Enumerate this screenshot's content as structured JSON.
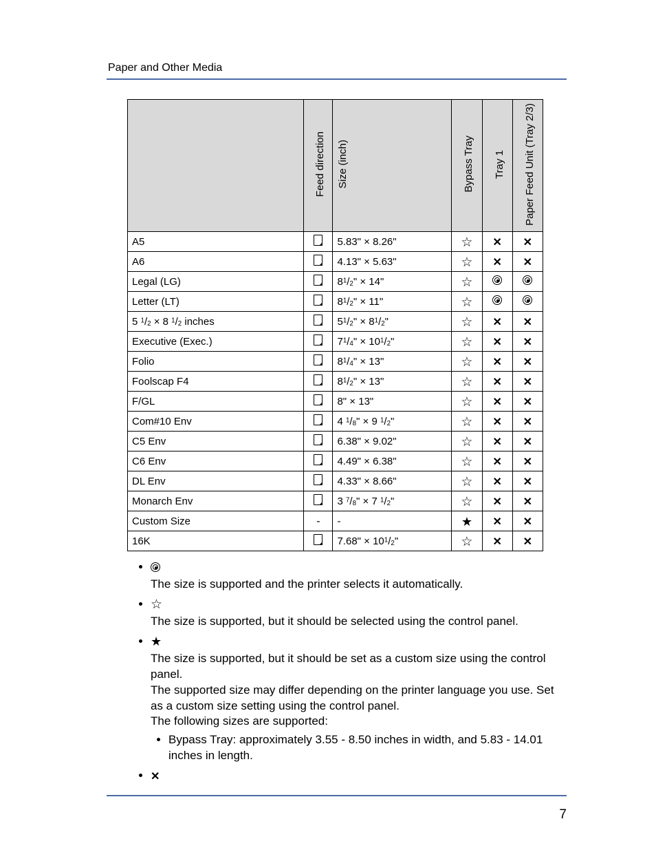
{
  "header": {
    "section_title": "Paper and Other Media"
  },
  "columns": {
    "name": "",
    "feed": "Feed direction",
    "size": "Size (inch)",
    "bypass": "Bypass Tray",
    "tray1": "Tray 1",
    "pfu": "Paper Feed Unit (Tray 2/3)"
  },
  "symbols": {
    "target": "target",
    "star_outline": "☆",
    "star_solid": "★",
    "cross": "✕",
    "dash": "-",
    "feed": "feed"
  },
  "rows": [
    {
      "name": "A5",
      "feed": "feed",
      "size": "5.83\" × 8.26\"",
      "bypass": "star_outline",
      "tray1": "cross",
      "pfu": "cross"
    },
    {
      "name": "A6",
      "feed": "feed",
      "size": "4.13\" × 5.63\"",
      "bypass": "star_outline",
      "tray1": "cross",
      "pfu": "cross"
    },
    {
      "name": "Legal (LG)",
      "feed": "feed",
      "size": "8{1/2}\" × 14\"",
      "bypass": "star_outline",
      "tray1": "target",
      "pfu": "target"
    },
    {
      "name": "Letter (LT)",
      "feed": "feed",
      "size": "8{1/2}\" × 11\"",
      "bypass": "star_outline",
      "tray1": "target",
      "pfu": "target"
    },
    {
      "name": "5 {1/2} × 8 {1/2} inches",
      "feed": "feed",
      "size": "5{1/2}\" × 8{1/2}\"",
      "bypass": "star_outline",
      "tray1": "cross",
      "pfu": "cross"
    },
    {
      "name": "Executive (Exec.)",
      "feed": "feed",
      "size": "7{1/4}\" × 10{1/2}\"",
      "bypass": "star_outline",
      "tray1": "cross",
      "pfu": "cross"
    },
    {
      "name": "Folio",
      "feed": "feed",
      "size": "8{1/4}\" × 13\"",
      "bypass": "star_outline",
      "tray1": "cross",
      "pfu": "cross"
    },
    {
      "name": "Foolscap F4",
      "feed": "feed",
      "size": "8{1/2}\" × 13\"",
      "bypass": "star_outline",
      "tray1": "cross",
      "pfu": "cross"
    },
    {
      "name": "F/GL",
      "feed": "feed",
      "size": "8\" × 13\"",
      "bypass": "star_outline",
      "tray1": "cross",
      "pfu": "cross"
    },
    {
      "name": "Com#10 Env",
      "feed": "feed",
      "size": "4 {1/8}\" × 9 {1/2}\"",
      "bypass": "star_outline",
      "tray1": "cross",
      "pfu": "cross"
    },
    {
      "name": "C5 Env",
      "feed": "feed",
      "size": "6.38\" × 9.02\"",
      "bypass": "star_outline",
      "tray1": "cross",
      "pfu": "cross"
    },
    {
      "name": "C6 Env",
      "feed": "feed",
      "size": "4.49\" × 6.38\"",
      "bypass": "star_outline",
      "tray1": "cross",
      "pfu": "cross"
    },
    {
      "name": "DL Env",
      "feed": "feed",
      "size": "4.33\" × 8.66\"",
      "bypass": "star_outline",
      "tray1": "cross",
      "pfu": "cross"
    },
    {
      "name": "Monarch Env",
      "feed": "feed",
      "size": "3 {7/8}\" × 7 {1/2}\"",
      "bypass": "star_outline",
      "tray1": "cross",
      "pfu": "cross"
    },
    {
      "name": "Custom Size",
      "feed": "dash",
      "size": "-",
      "bypass": "star_solid",
      "tray1": "cross",
      "pfu": "cross"
    },
    {
      "name": "16K",
      "feed": "feed",
      "size": "7.68\" × 10{1/2}\"",
      "bypass": "star_outline",
      "tray1": "cross",
      "pfu": "cross"
    }
  ],
  "legend": {
    "items": [
      {
        "icon": "target",
        "text": "The size is supported and the printer selects it automatically."
      },
      {
        "icon": "star_outline",
        "text": "The size is supported, but it should be selected using the control panel."
      },
      {
        "icon": "star_solid",
        "text": "The size is supported, but it should be set as a custom size using the control panel.\nThe supported size may differ depending on the printer language you use. Set as a custom size setting using the control panel.\nThe following sizes are supported:",
        "sub": [
          "Bypass Tray: approximately 3.55 - 8.50 inches in width, and 5.83 - 14.01 inches in length."
        ]
      },
      {
        "icon": "cross",
        "text": ""
      }
    ]
  },
  "page_number": "7"
}
